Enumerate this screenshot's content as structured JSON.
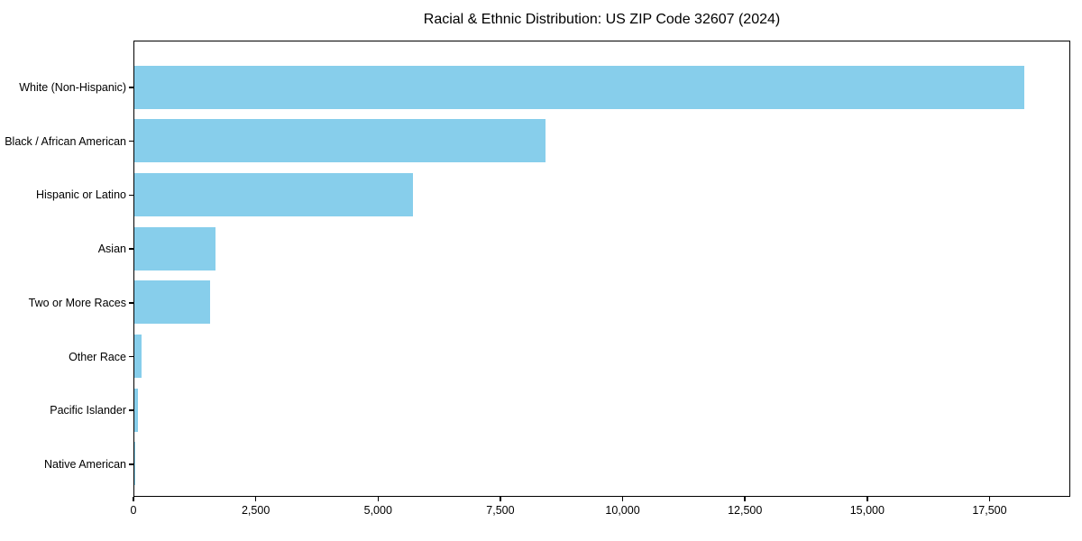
{
  "chart_data": {
    "type": "bar",
    "orientation": "horizontal",
    "title": "Racial & Ethnic Distribution: US ZIP Code 32607 (2024)",
    "categories": [
      "White (Non-Hispanic)",
      "Black / African American",
      "Hispanic or Latino",
      "Asian",
      "Two or More Races",
      "Other Race",
      "Pacific Islander",
      "Native American"
    ],
    "values": [
      18200,
      8400,
      5700,
      1650,
      1550,
      150,
      70,
      10
    ],
    "xlabel": "",
    "ylabel": "",
    "xlim": [
      0,
      19150
    ],
    "x_ticks": [
      0,
      2500,
      5000,
      7500,
      10000,
      12500,
      15000,
      17500
    ],
    "x_tick_labels": [
      "0",
      "2,500",
      "5,000",
      "7,500",
      "10,000",
      "12,500",
      "15,000",
      "17,500"
    ],
    "bar_color": "#87CEEB",
    "axis_color": "#000000",
    "background_color": "#FFFFFF",
    "grid": false,
    "legend": null
  }
}
